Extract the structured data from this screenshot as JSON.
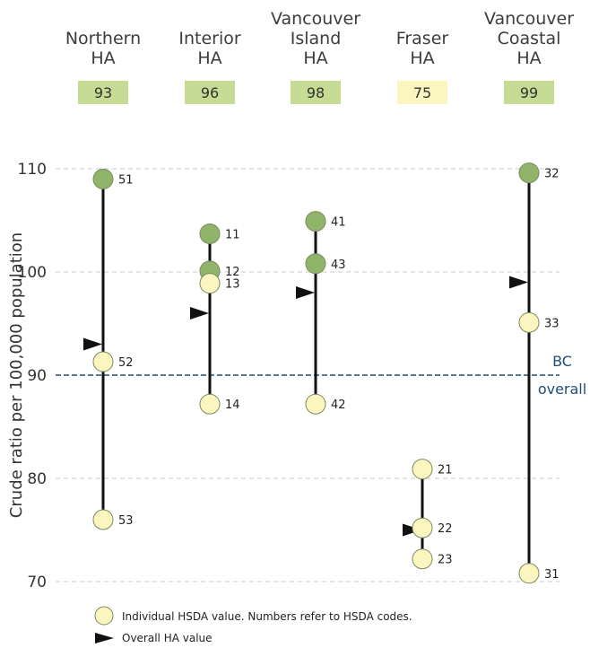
{
  "chart_data": {
    "type": "scatter",
    "ylabel": "Crude ratio per 100,000 population",
    "ylim": [
      70,
      110
    ],
    "yticks": [
      70,
      80,
      90,
      100,
      110
    ],
    "grid": true,
    "reference": {
      "value": 90,
      "label_line1": "BC",
      "label_line2": "overall"
    },
    "groups": [
      {
        "name_lines": [
          "Northern",
          "HA"
        ],
        "ha_value": 93,
        "box_color": "#c6dc94",
        "points": [
          {
            "code": "51",
            "value": 109
          },
          {
            "code": "52",
            "value": 91.3
          },
          {
            "code": "53",
            "value": 76
          }
        ]
      },
      {
        "name_lines": [
          "Interior",
          "HA"
        ],
        "ha_value": 96,
        "box_color": "#c6dc94",
        "points": [
          {
            "code": "11",
            "value": 103.7
          },
          {
            "code": "12",
            "value": 100.1
          },
          {
            "code": "13",
            "value": 98.9
          },
          {
            "code": "14",
            "value": 87.2
          }
        ]
      },
      {
        "name_lines": [
          "Vancouver",
          "Island",
          "HA"
        ],
        "ha_value": 98,
        "box_color": "#c6dc94",
        "points": [
          {
            "code": "41",
            "value": 104.9
          },
          {
            "code": "43",
            "value": 100.8
          },
          {
            "code": "42",
            "value": 87.2
          }
        ]
      },
      {
        "name_lines": [
          "Fraser",
          "HA"
        ],
        "ha_value": 75,
        "box_color": "#fbf6c0",
        "points": [
          {
            "code": "21",
            "value": 80.9
          },
          {
            "code": "22",
            "value": 75.2
          },
          {
            "code": "23",
            "value": 72.2
          }
        ]
      },
      {
        "name_lines": [
          "Vancouver",
          "Coastal",
          "HA"
        ],
        "ha_value": 99,
        "box_color": "#c6dc94",
        "points": [
          {
            "code": "32",
            "value": 109.6
          },
          {
            "code": "33",
            "value": 95.1
          },
          {
            "code": "31",
            "value": 70.8
          }
        ]
      }
    ],
    "legend": {
      "point_label": "Individual HSDA value. Numbers refer to HSDA codes.",
      "marker_label": "Overall HA value"
    },
    "colors": {
      "grid": "#c8c8c8",
      "reference": "#1f4e79",
      "stem": "#111111",
      "point_above": "#8fb46a",
      "point_below": "#fbf6c0",
      "point_stroke": "#7a8a60",
      "marker": "#111111"
    }
  }
}
